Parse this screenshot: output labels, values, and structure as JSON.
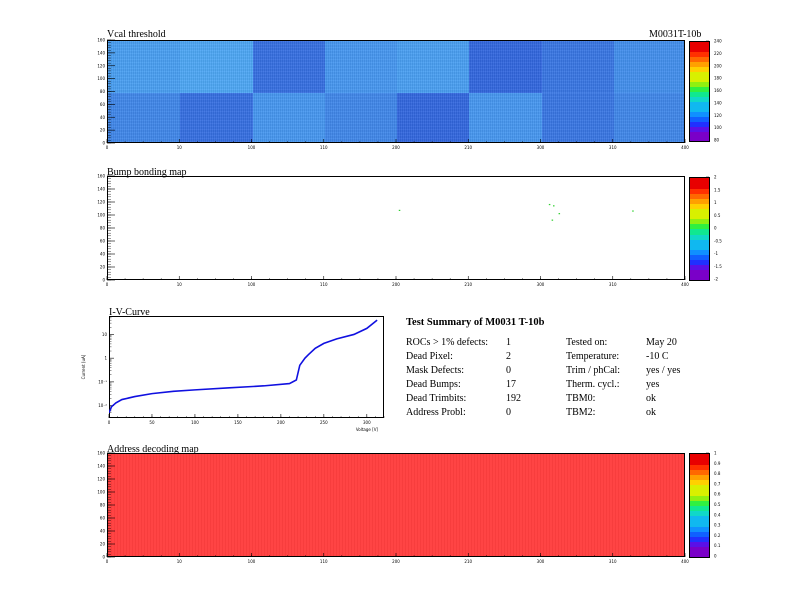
{
  "module_id": "M0031T-10b",
  "vcal": {
    "title": "Vcal threshold",
    "x_ticks": [
      "0",
      "10",
      "100",
      "110",
      "200",
      "210",
      "300",
      "310",
      "400"
    ],
    "y_ticks": [
      "0",
      "20",
      "40",
      "60",
      "80",
      "100",
      "120",
      "140",
      "160"
    ],
    "colorbar_labels": [
      "80",
      "100",
      "120",
      "140",
      "160",
      "180",
      "200",
      "220",
      "240"
    ]
  },
  "bump": {
    "title": "Bump bonding map",
    "x_ticks": [
      "0",
      "10",
      "100",
      "110",
      "200",
      "210",
      "300",
      "310",
      "400"
    ],
    "y_ticks": [
      "0",
      "20",
      "40",
      "60",
      "80",
      "100",
      "120",
      "140",
      "160"
    ],
    "colorbar_labels": [
      "-2",
      "-1.5",
      "-1",
      "-0.5",
      "0",
      "0.5",
      "1",
      "1.5",
      "2"
    ]
  },
  "addr": {
    "title": "Address decoding map",
    "x_ticks": [
      "0",
      "10",
      "100",
      "110",
      "200",
      "210",
      "300",
      "310",
      "400"
    ],
    "y_ticks": [
      "0",
      "20",
      "40",
      "60",
      "80",
      "100",
      "120",
      "140",
      "160"
    ],
    "colorbar_labels": [
      "0",
      "0.1",
      "0.2",
      "0.3",
      "0.4",
      "0.5",
      "0.6",
      "0.7",
      "0.8",
      "0.9",
      "1"
    ]
  },
  "iv": {
    "title": "I-V-Curve",
    "xlabel": "Voltage [V]",
    "ylabel": "Current [uA]",
    "x_ticks": [
      "0",
      "50",
      "100",
      "150",
      "200",
      "250",
      "300"
    ],
    "y_ticks": [
      "10",
      "1",
      "10⁻¹",
      "10⁻²"
    ]
  },
  "summary": {
    "title": "Test Summary of M0031     T-10b",
    "left": [
      {
        "label": "ROCs > 1% defects:",
        "value": "1"
      },
      {
        "label": "Dead Pixel:",
        "value": "2"
      },
      {
        "label": "Mask Defects:",
        "value": "0"
      },
      {
        "label": "Dead Bumps:",
        "value": "17"
      },
      {
        "label": "Dead Trimbits:",
        "value": "192"
      },
      {
        "label": "Address Probl:",
        "value": "0"
      }
    ],
    "right": [
      {
        "label": "Tested on:",
        "value": "May 20"
      },
      {
        "label": "Temperature:",
        "value": "-10 C"
      },
      {
        "label": "Trim / phCal:",
        "value": "yes / yes"
      },
      {
        "label": "Therm. cycl.:",
        "value": "yes"
      },
      {
        "label": "TBM0:",
        "value": "ok"
      },
      {
        "label": "TBM2:",
        "value": "ok"
      }
    ]
  },
  "colors": {
    "vcal_light": "#4aa6f5",
    "vcal_mid": "#3a86ee",
    "vcal_dark": "#2f5fdc",
    "addr_fill": "#ff4444",
    "bump_points": "#2fd02f",
    "iv_line": "#1010e0"
  },
  "chart_data": [
    {
      "type": "heatmap",
      "title": "Vcal threshold",
      "xlim": [
        0,
        416
      ],
      "ylim": [
        0,
        160
      ],
      "zlim": [
        80,
        250
      ],
      "roc_tiles": {
        "top_row": [
          145,
          150,
          115,
          140,
          145,
          110,
          120,
          135
        ],
        "bottom_row": [
          130,
          115,
          140,
          130,
          110,
          140,
          120,
          130
        ]
      }
    },
    {
      "type": "heatmap",
      "title": "Bump bonding map",
      "xlim": [
        0,
        416
      ],
      "ylim": [
        0,
        160
      ],
      "zlim": [
        -2,
        2
      ],
      "points": [
        [
          325,
          103
        ],
        [
          320,
          93
        ],
        [
          318,
          117
        ],
        [
          321,
          115
        ],
        [
          378,
          107
        ],
        [
          210,
          108
        ]
      ]
    },
    {
      "type": "line",
      "title": "I-V-Curve",
      "xlabel": "Voltage [V]",
      "ylabel": "Current [uA]",
      "xlim": [
        0,
        320
      ],
      "ylog": true,
      "ylim": [
        0.003,
        60
      ],
      "x": [
        0,
        3,
        8,
        15,
        30,
        50,
        75,
        100,
        140,
        180,
        210,
        218,
        222,
        228,
        232,
        240,
        250,
        265,
        285,
        300,
        312
      ],
      "y": [
        0.005,
        0.009,
        0.013,
        0.018,
        0.024,
        0.032,
        0.04,
        0.046,
        0.056,
        0.068,
        0.085,
        0.12,
        0.5,
        1.0,
        1.4,
        2.6,
        4.2,
        6.5,
        10,
        18,
        40
      ]
    },
    {
      "type": "heatmap",
      "title": "Address decoding map",
      "xlim": [
        0,
        416
      ],
      "ylim": [
        0,
        160
      ],
      "zlim": [
        0,
        1
      ],
      "uniform_value": 1
    }
  ]
}
